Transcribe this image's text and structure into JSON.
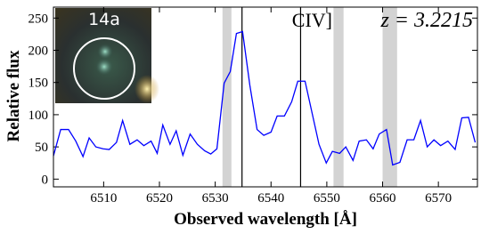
{
  "chart_data": {
    "type": "line",
    "xlabel": "Observed wavelength [Å]",
    "ylabel": "Relative flux",
    "ion_label": "CIV]",
    "redshift_label": "z = 3.2215",
    "inset_label": "14a",
    "color": "#0000ff",
    "x": [
      6501.0,
      6502.3,
      6503.7,
      6505.0,
      6506.3,
      6507.4,
      6508.6,
      6509.9,
      6511.0,
      6512.3,
      6513.4,
      6514.7,
      6516.0,
      6517.2,
      6518.5,
      6519.6,
      6520.6,
      6521.9,
      6523.0,
      6524.2,
      6525.5,
      6526.8,
      6528.1,
      6529.2,
      6530.3,
      6531.6,
      6532.7,
      6533.8,
      6534.9,
      6536.2,
      6537.5,
      6538.7,
      6540.0,
      6541.1,
      6542.4,
      6543.7,
      6544.8,
      6546.1,
      6547.3,
      6548.6,
      6549.9,
      6551.0,
      6552.3,
      6553.4,
      6554.7,
      6555.8,
      6557.1,
      6558.3,
      6559.4,
      6560.7,
      6561.8,
      6563.1,
      6564.4,
      6565.6,
      6566.8,
      6568.0,
      6569.2,
      6570.4,
      6571.7,
      6573.0,
      6574.2,
      6575.4,
      6576.6
    ],
    "values": [
      36,
      77,
      77,
      59,
      35,
      64,
      50,
      47,
      46,
      57,
      91,
      54,
      61,
      52,
      59,
      40,
      84,
      54,
      75,
      37,
      70,
      54,
      44,
      39,
      47,
      149,
      167,
      226,
      229,
      146,
      77,
      68,
      73,
      98,
      98,
      120,
      152,
      152,
      105,
      54,
      25,
      43,
      40,
      50,
      29,
      59,
      61,
      47,
      70,
      77,
      22,
      26,
      61,
      61,
      91,
      50,
      61,
      52,
      59,
      46,
      95,
      96,
      57
    ],
    "shaded_regions": [
      [
        6531.3,
        6532.9
      ],
      [
        6551.2,
        6553.0
      ],
      [
        6560.0,
        6562.6
      ]
    ],
    "shade_color": "#d3d3d3",
    "vlines": [
      6534.8,
      6545.3
    ],
    "xlim": [
      6501,
      6577
    ],
    "ylim": [
      -12,
      267
    ],
    "xticks": [
      6510,
      6520,
      6530,
      6540,
      6550,
      6560,
      6570
    ],
    "yticks": [
      0,
      50,
      100,
      150,
      200,
      250
    ],
    "grid": false
  }
}
